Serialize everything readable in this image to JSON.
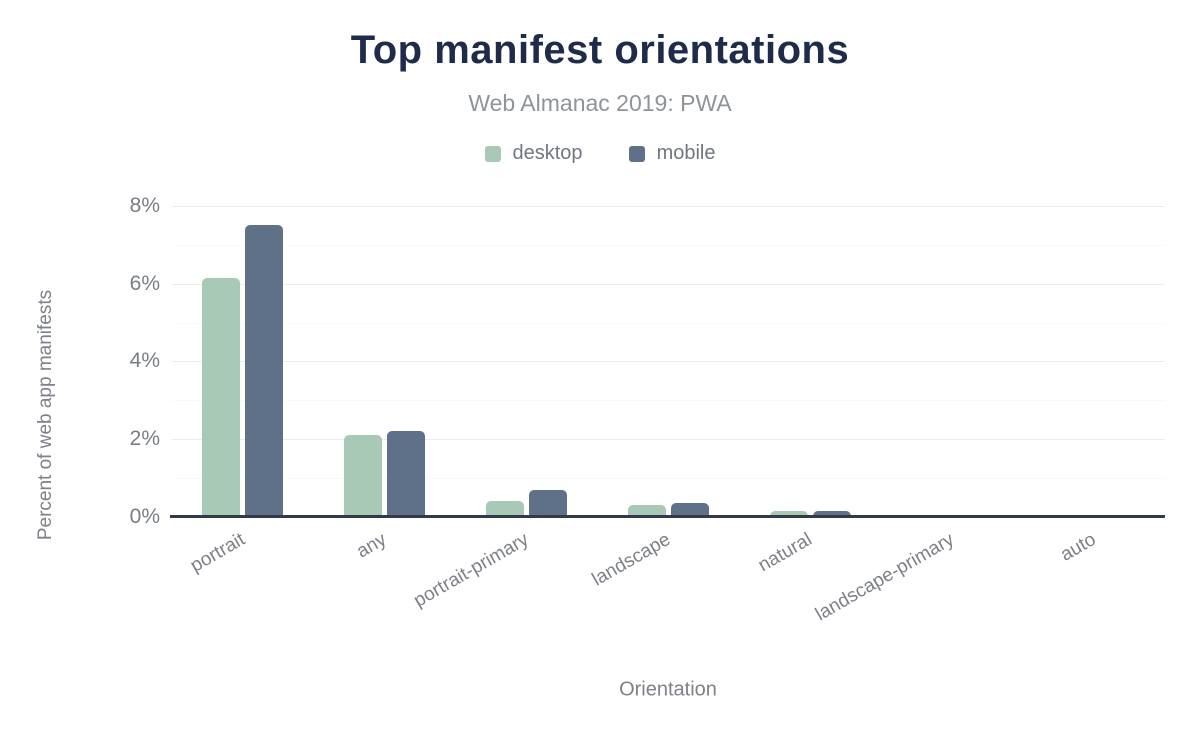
{
  "chart": {
    "title": "Top manifest orientations",
    "subtitle": "Web Almanac 2019: PWA",
    "y_axis_title": "Percent of web app manifests",
    "x_axis_title": "Orientation",
    "y_tick_labels": [
      "0%",
      "2%",
      "4%",
      "6%",
      "8%"
    ]
  },
  "chart_data": {
    "type": "bar",
    "title": "Top manifest orientations",
    "subtitle": "Web Almanac 2019: PWA",
    "categories": [
      "portrait",
      "any",
      "portrait-primary",
      "landscape",
      "natural",
      "landscape-primary",
      "auto"
    ],
    "series": [
      {
        "name": "desktop",
        "color": "#a7c9b6",
        "values": [
          6.15,
          2.1,
          0.4,
          0.3,
          0.15,
          0.05,
          0.04
        ]
      },
      {
        "name": "mobile",
        "color": "#5f7189",
        "values": [
          7.5,
          2.2,
          0.7,
          0.35,
          0.15,
          0.05,
          0.05
        ]
      }
    ],
    "xlabel": "Orientation",
    "ylabel": "Percent of web app manifests",
    "ylim": [
      0,
      8.4
    ],
    "y_ticks": [
      0,
      2,
      4,
      6,
      8
    ],
    "minor_gridlines": [
      1,
      3,
      5,
      7
    ],
    "grid": true,
    "legend_position": "top",
    "axis_color": "#333a47",
    "title_color": "#1f2b4a"
  }
}
